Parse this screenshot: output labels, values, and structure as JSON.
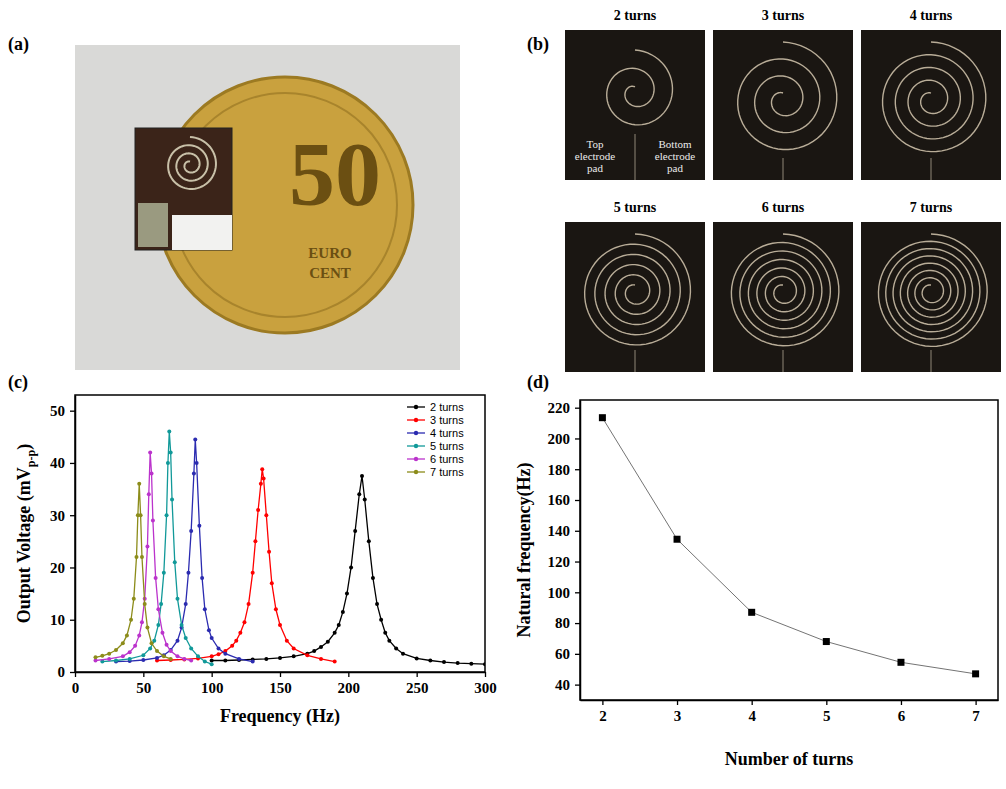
{
  "panel_labels": [
    "(a)",
    "(b)",
    "(c)",
    "(d)"
  ],
  "photo_a": {
    "coin_texts": [
      "50",
      "EURO",
      "CENT"
    ]
  },
  "photo_b": {
    "tiles": [
      {
        "title": "2 turns",
        "turns": 2,
        "labels": [
          "Top electrode pad",
          "Bottom electrode pad"
        ]
      },
      {
        "title": "3 turns",
        "turns": 3
      },
      {
        "title": "4 turns",
        "turns": 4
      },
      {
        "title": "5 turns",
        "turns": 5
      },
      {
        "title": "6 turns",
        "turns": 6
      },
      {
        "title": "7 turns",
        "turns": 7
      }
    ]
  },
  "chart_data": [
    {
      "type": "line",
      "xlabel": "Frequency (Hz)",
      "ylabel": [
        "Output Voltage (mV",
        "p-p",
        ")"
      ],
      "xlim": [
        0,
        300
      ],
      "xticks": [
        0,
        50,
        100,
        150,
        200,
        250,
        300
      ],
      "ylim": [
        0,
        53
      ],
      "yticks": [
        0,
        10,
        20,
        30,
        40,
        50
      ],
      "legend": "upper right",
      "marker": "circle",
      "series": [
        {
          "name": "2 turns",
          "color": "#000000",
          "x": [
            100,
            110,
            120,
            130,
            140,
            150,
            160,
            170,
            175,
            180,
            185,
            190,
            193,
            196,
            199,
            202,
            205,
            208,
            210,
            212,
            215,
            218,
            221,
            224,
            227,
            230,
            235,
            240,
            250,
            260,
            270,
            280,
            290,
            300
          ],
          "values": [
            2.2,
            2.2,
            2.3,
            2.4,
            2.5,
            2.7,
            3.0,
            3.5,
            4.0,
            4.8,
            5.8,
            7.5,
            9.0,
            11.5,
            15,
            20,
            27,
            34,
            37.5,
            33,
            25,
            18,
            13,
            10,
            7.5,
            6,
            4.5,
            3.5,
            2.6,
            2.2,
            1.9,
            1.7,
            1.6,
            1.5
          ]
        },
        {
          "name": "3 turns",
          "color": "#ff0000",
          "x": [
            60,
            70,
            80,
            90,
            100,
            105,
            110,
            115,
            118,
            121,
            124,
            127,
            130,
            132,
            134,
            136,
            137,
            138,
            140,
            142,
            144,
            147,
            150,
            155,
            160,
            170,
            180,
            190
          ],
          "values": [
            2.2,
            2.3,
            2.4,
            2.6,
            3.0,
            3.4,
            4.0,
            5.0,
            6.0,
            7.5,
            9.5,
            13,
            19,
            25,
            31,
            36,
            38.8,
            37,
            30,
            23,
            17,
            12,
            9,
            6,
            4.5,
            3.2,
            2.5,
            2.0
          ]
        },
        {
          "name": "4 turns",
          "color": "#2b2bb0",
          "x": [
            30,
            40,
            50,
            60,
            65,
            70,
            75,
            78,
            81,
            83,
            85,
            87,
            88,
            89,
            91,
            93,
            95,
            98,
            100,
            105,
            110,
            120,
            130
          ],
          "values": [
            2.0,
            2.1,
            2.3,
            2.7,
            3.2,
            4.2,
            6.0,
            8.5,
            13,
            19,
            27,
            38,
            44.5,
            40,
            28,
            18,
            12,
            8,
            6.5,
            4.5,
            3.5,
            2.5,
            2.0
          ]
        },
        {
          "name": "5 turns",
          "color": "#119999",
          "x": [
            20,
            30,
            40,
            50,
            55,
            58,
            61,
            63,
            65,
            67,
            68,
            69,
            70,
            71,
            73,
            75,
            78,
            81,
            85,
            90,
            95,
            100
          ],
          "values": [
            2.0,
            2.2,
            2.5,
            3.2,
            4.5,
            6,
            9,
            13,
            19,
            30,
            40,
            46,
            42,
            33,
            21,
            14,
            9,
            6.5,
            4.5,
            3,
            2,
            1.5
          ]
        },
        {
          "name": "6 turns",
          "color": "#bb33cc",
          "x": [
            15,
            25,
            35,
            40,
            44,
            47,
            49,
            51,
            53,
            54,
            55,
            56,
            57,
            59,
            61,
            64,
            67,
            70,
            75,
            80,
            85
          ],
          "values": [
            2.2,
            2.5,
            3.0,
            3.8,
            5,
            7,
            9.5,
            14,
            24,
            34,
            42,
            38,
            29,
            18,
            12,
            7.5,
            5.2,
            4,
            3,
            2.5,
            2.2
          ]
        },
        {
          "name": "7 turns",
          "color": "#8c8c1a",
          "x": [
            15,
            20,
            25,
            30,
            35,
            38,
            41,
            43,
            45,
            46,
            47,
            48,
            49,
            51,
            53,
            56,
            60,
            65,
            70
          ],
          "values": [
            2.8,
            3.1,
            3.5,
            4.2,
            5.5,
            7,
            10,
            14,
            22,
            30,
            36,
            30,
            22,
            13,
            8.5,
            5.5,
            4,
            3,
            2.5
          ]
        }
      ]
    },
    {
      "type": "line",
      "xlabel": "Number of turns",
      "ylabel": "Natural frequency(Hz)",
      "x": [
        2,
        3,
        4,
        5,
        6,
        7
      ],
      "values": [
        213.5,
        134.5,
        87,
        68,
        54.5,
        47
      ],
      "xlim": [
        1.7,
        7.3
      ],
      "xticks": [
        2,
        3,
        4,
        5,
        6,
        7
      ],
      "ylim": [
        30,
        225
      ],
      "yticks": [
        40,
        60,
        80,
        100,
        120,
        140,
        160,
        180,
        200,
        220
      ],
      "color": "#000000",
      "marker": "square"
    }
  ]
}
